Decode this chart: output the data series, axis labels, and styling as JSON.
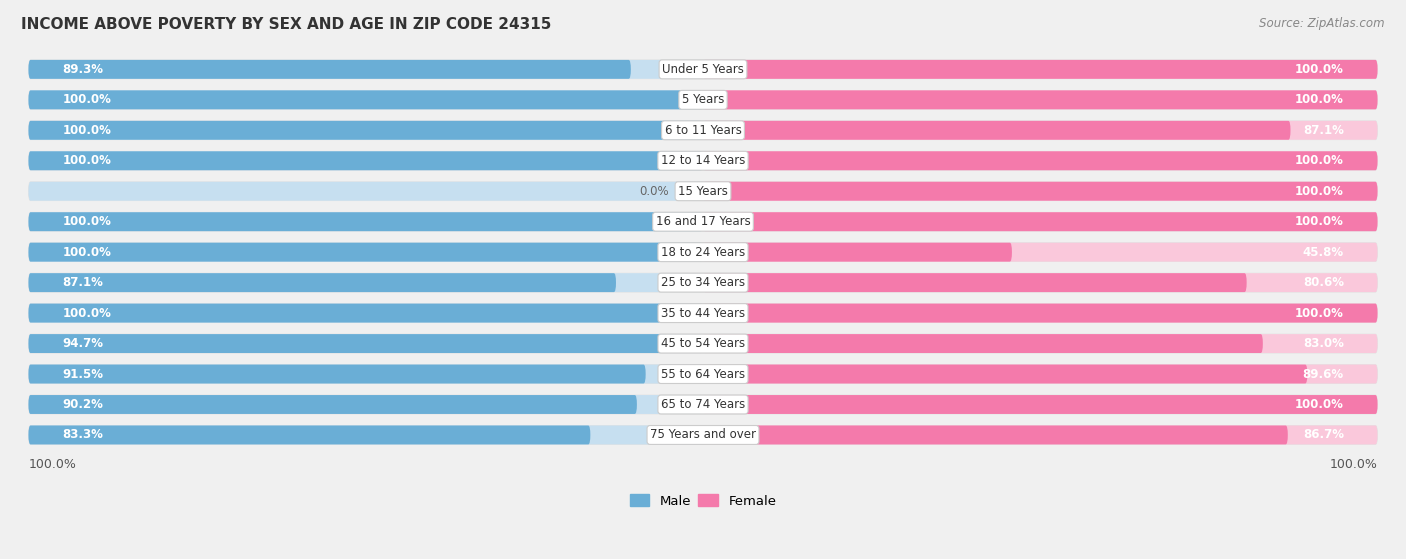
{
  "title": "INCOME ABOVE POVERTY BY SEX AND AGE IN ZIP CODE 24315",
  "source": "Source: ZipAtlas.com",
  "categories": [
    "Under 5 Years",
    "5 Years",
    "6 to 11 Years",
    "12 to 14 Years",
    "15 Years",
    "16 and 17 Years",
    "18 to 24 Years",
    "25 to 34 Years",
    "35 to 44 Years",
    "45 to 54 Years",
    "55 to 64 Years",
    "65 to 74 Years",
    "75 Years and over"
  ],
  "male": [
    89.3,
    100.0,
    100.0,
    100.0,
    0.0,
    100.0,
    100.0,
    87.1,
    100.0,
    94.7,
    91.5,
    90.2,
    83.3
  ],
  "female": [
    100.0,
    100.0,
    87.1,
    100.0,
    100.0,
    100.0,
    45.8,
    80.6,
    100.0,
    83.0,
    89.6,
    100.0,
    86.7
  ],
  "male_color": "#6aaed6",
  "female_color": "#f47aab",
  "male_color_light": "#c6dff0",
  "female_color_light": "#fac8db",
  "bg_color": "#f0f0f0",
  "row_bg_color": "#e8e8e8",
  "label_fontsize": 8.5,
  "title_fontsize": 11,
  "max_value": 100.0
}
